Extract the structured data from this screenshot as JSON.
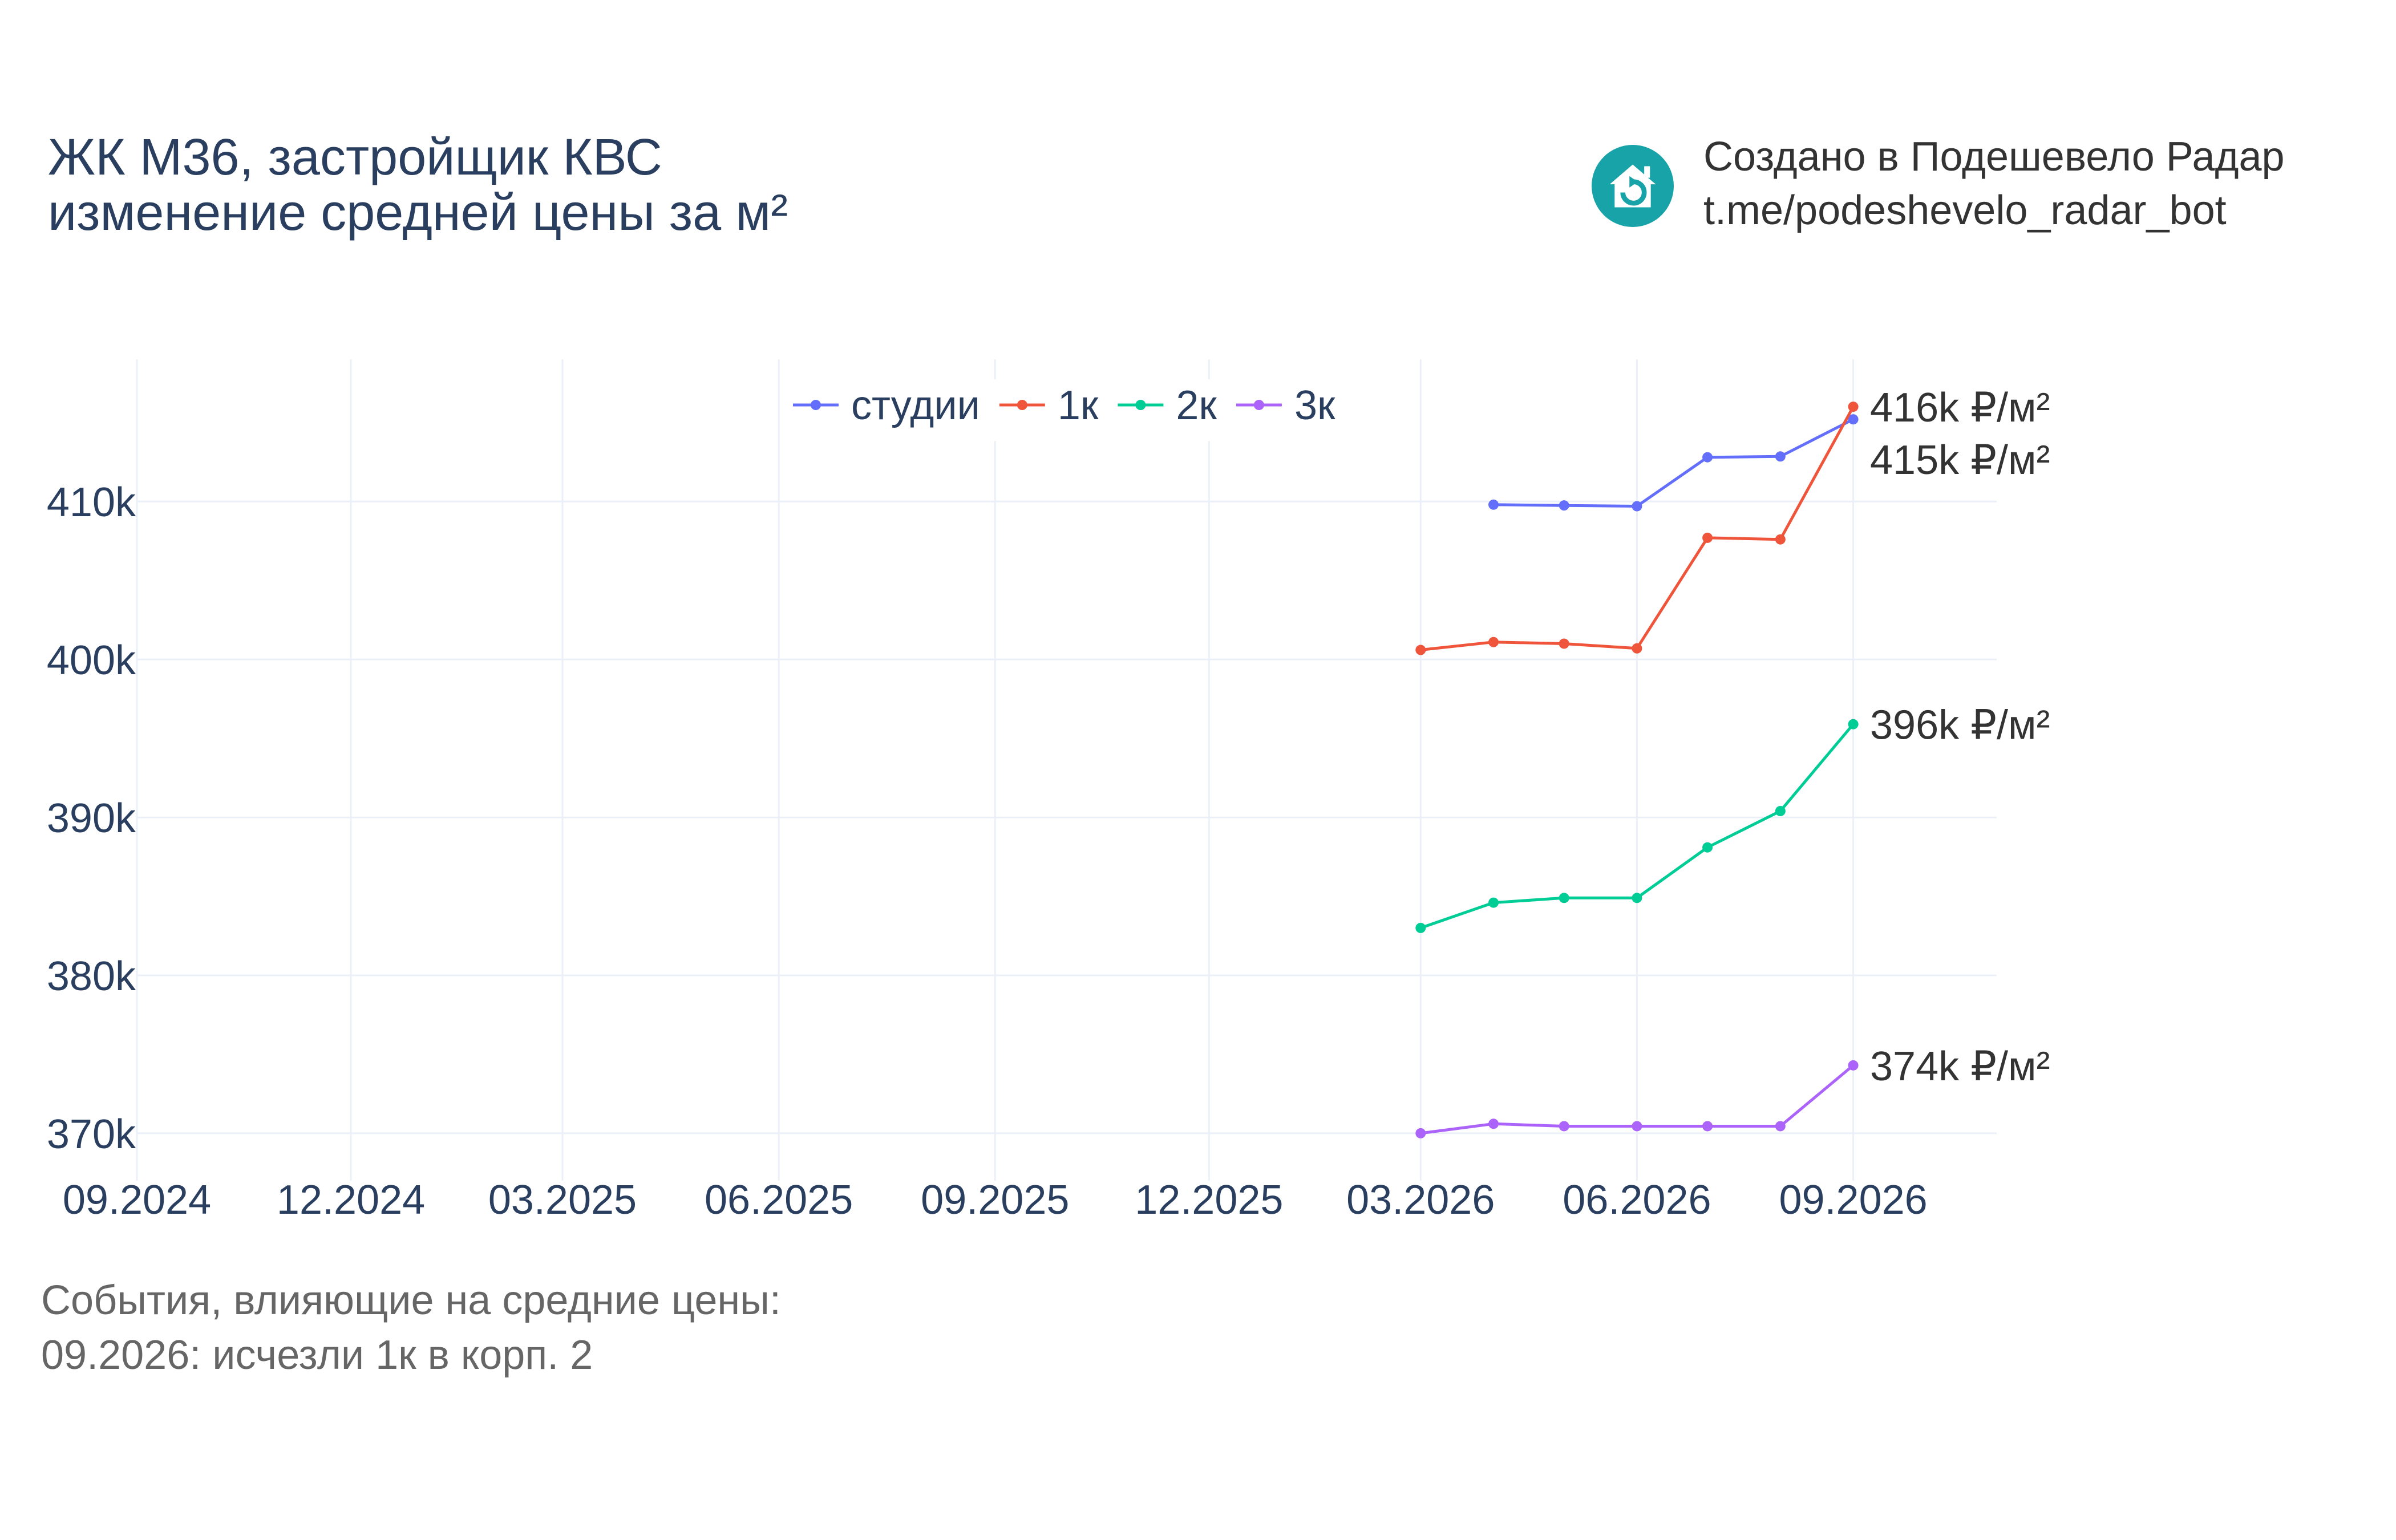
{
  "title": {
    "line1": "ЖК М36, застройщик КВС",
    "line2": "изменение средней цены за м²"
  },
  "brand": {
    "line1": "Создано в Подешевело Радар",
    "line2": "t.me/podeshevelo_radar_bot",
    "icon": "house-refresh-icon",
    "color": "#17a3a8"
  },
  "events": {
    "header": "События, влияющие на средние цены:",
    "items": [
      "09.2026: исчезли 1к в корп. 2"
    ]
  },
  "chart_data": {
    "type": "line",
    "x_ticks": [
      "09.2024",
      "12.2024",
      "03.2025",
      "06.2025",
      "09.2025",
      "12.2025",
      "03.2026",
      "06.2026",
      "09.2026"
    ],
    "y_ticks": [
      "370k",
      "380k",
      "390k",
      "400k",
      "410k"
    ],
    "y_tick_values": [
      370000,
      380000,
      390000,
      400000,
      410000
    ],
    "xlim": [
      "2024-09-01",
      "2026-11-01"
    ],
    "ylim": [
      367000,
      419000
    ],
    "grid": true,
    "legend_position": "top-center",
    "series": [
      {
        "name": "студии",
        "color": "#636efa",
        "x": [
          "2026-04-01",
          "2026-05-01",
          "2026-06-01",
          "2026-07-01",
          "2026-08-01",
          "2026-09-01"
        ],
        "y": [
          409800,
          409750,
          409700,
          412800,
          412850,
          415200
        ],
        "end_label": "415k ₽/м²"
      },
      {
        "name": "1к",
        "color": "#ef553b",
        "x": [
          "2026-03-01",
          "2026-04-01",
          "2026-05-01",
          "2026-06-01",
          "2026-07-01",
          "2026-08-01",
          "2026-09-01"
        ],
        "y": [
          400600,
          401100,
          401000,
          400700,
          407700,
          407600,
          416000
        ],
        "end_label": "416k ₽/м²"
      },
      {
        "name": "2к",
        "color": "#00cc96",
        "x": [
          "2026-03-01",
          "2026-04-01",
          "2026-05-01",
          "2026-06-01",
          "2026-07-01",
          "2026-08-01",
          "2026-09-01"
        ],
        "y": [
          383000,
          384600,
          384900,
          384900,
          388100,
          390400,
          395900
        ],
        "end_label": "396k ₽/м²"
      },
      {
        "name": "3к",
        "color": "#ab63fa",
        "x": [
          "2026-03-01",
          "2026-04-01",
          "2026-05-01",
          "2026-06-01",
          "2026-07-01",
          "2026-08-01",
          "2026-09-01"
        ],
        "y": [
          370000,
          370600,
          370450,
          370450,
          370450,
          370450,
          374300
        ],
        "end_label": "374k ₽/м²"
      }
    ]
  }
}
